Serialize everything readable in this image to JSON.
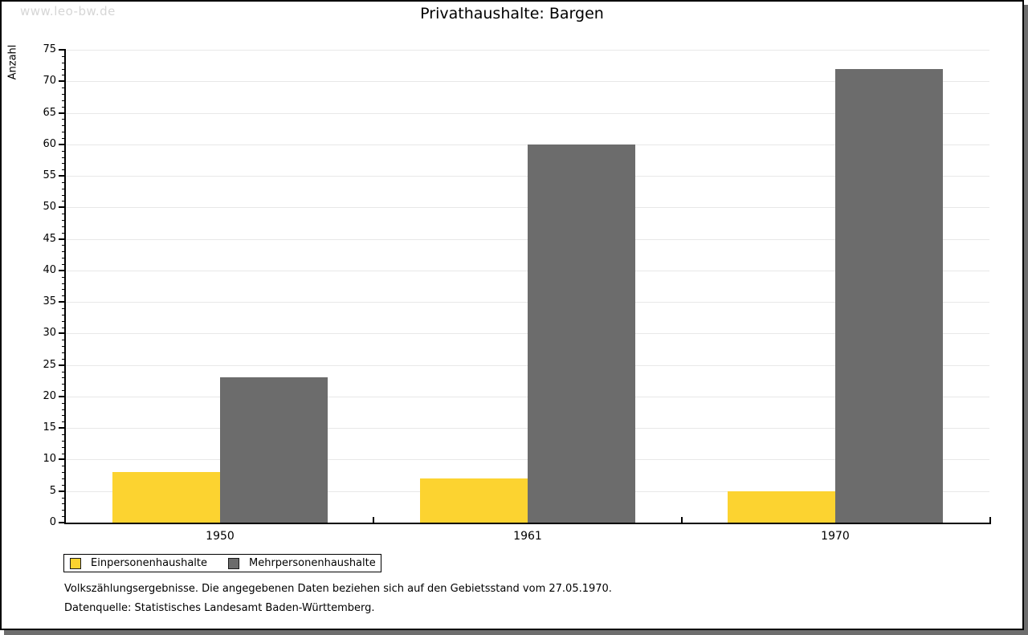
{
  "watermark": "www.leo-bw.de",
  "chart_data": {
    "type": "bar",
    "title": "Privathaushalte: Bargen",
    "categories": [
      "1950",
      "1961",
      "1970"
    ],
    "series": [
      {
        "name": "Einpersonenhaushalte",
        "color": "#FCD330",
        "values": [
          8,
          7,
          5
        ]
      },
      {
        "name": "Mehrpersonenhaushalte",
        "color": "#6C6C6C",
        "values": [
          23,
          60,
          72
        ]
      }
    ],
    "xlabel": "",
    "ylabel": "Anzahl",
    "ylim": [
      0,
      75
    ],
    "ytick_step": 5,
    "minor_tick_step": 1,
    "grid": true,
    "gridline_color": "#E8E8E8",
    "legend_position": "bottom-left"
  },
  "footer": {
    "line1": "Volkszählungsergebnisse. Die angegebenen Daten beziehen sich auf den Gebietsstand vom 27.05.1970.",
    "line2": "Datenquelle: Statistisches Landesamt Baden-Württemberg."
  }
}
